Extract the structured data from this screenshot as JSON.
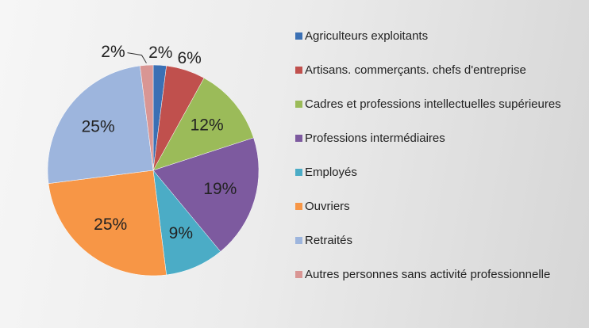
{
  "chart_data": {
    "type": "pie",
    "categories": [
      "Agriculteurs exploitants",
      "Artisans. commerçants. chefs d'entreprise",
      "Cadres et professions intellectuelles supérieures",
      "Professions intermédiaires",
      "Employés",
      "Ouvriers",
      "Retraités",
      "Autres personnes sans activité professionnelle"
    ],
    "values": [
      2,
      6,
      12,
      19,
      9,
      25,
      25,
      2
    ],
    "value_labels": [
      "2%",
      "6%",
      "12%",
      "19%",
      "9%",
      "25%",
      "25%",
      "2%"
    ],
    "colors": [
      "#3b70b4",
      "#c0504d",
      "#9bbb59",
      "#7d5a9f",
      "#4bacc6",
      "#f79646",
      "#9db5dd",
      "#d99694"
    ],
    "legend": "right"
  }
}
